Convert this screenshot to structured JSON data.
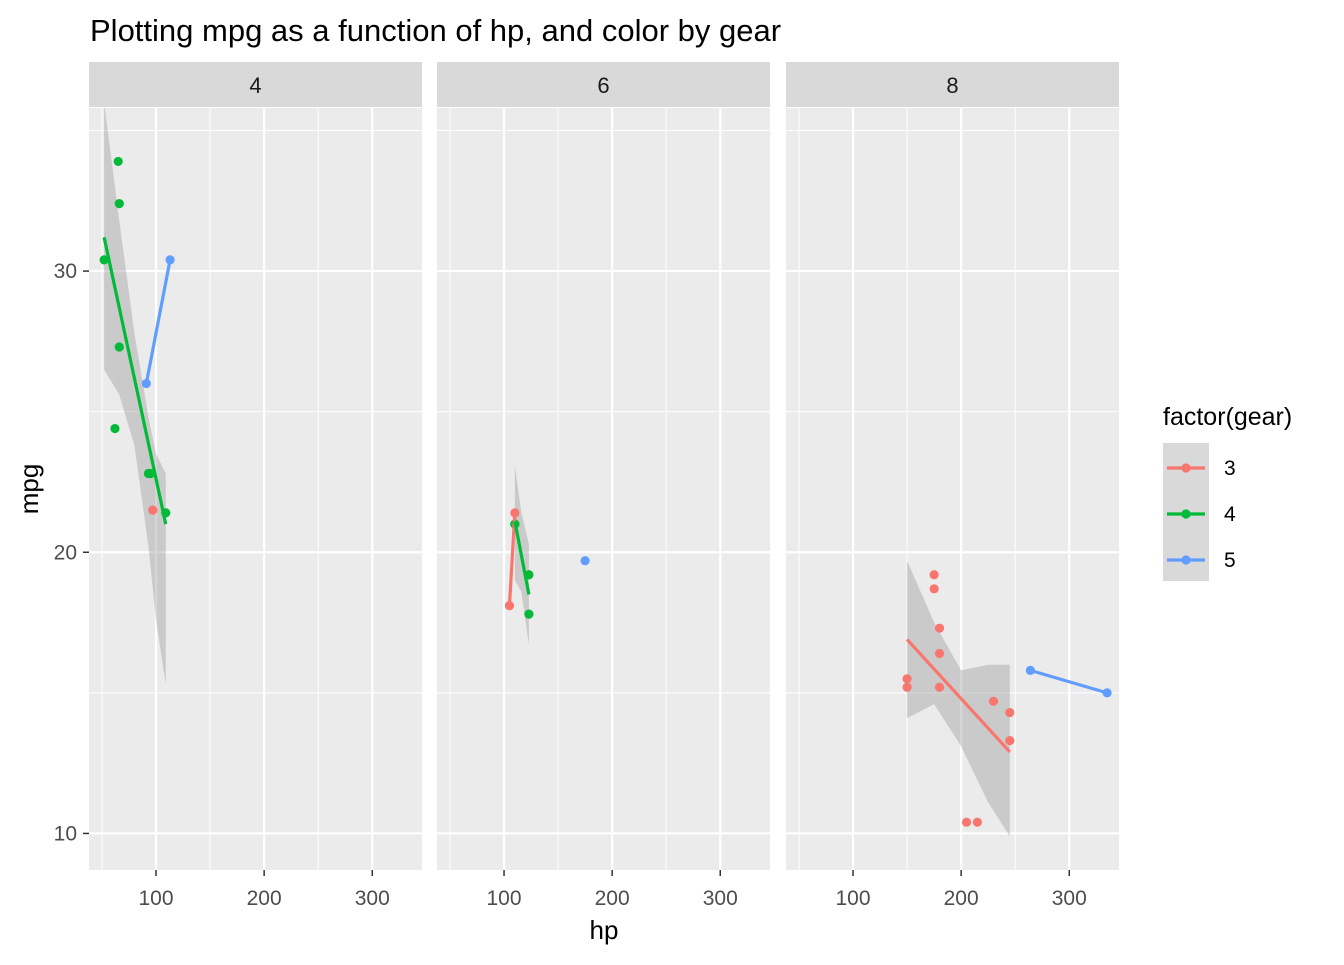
{
  "chart_data": {
    "type": "scatter",
    "title": "Plotting mpg as a function of hp, and color by gear",
    "xlabel": "hp",
    "ylabel": "mpg",
    "xlim": [
      38,
      346
    ],
    "ylim": [
      8.7,
      35.8
    ],
    "x_ticks": [
      100,
      200,
      300
    ],
    "y_ticks": [
      10,
      20,
      30
    ],
    "grid": true,
    "legend": {
      "title": "factor(gear)",
      "position": "right",
      "entries": [
        {
          "label": "3",
          "color": "#F8766D"
        },
        {
          "label": "4",
          "color": "#00BA38"
        },
        {
          "label": "5",
          "color": "#619CFF"
        }
      ]
    },
    "facets": [
      {
        "label": "4",
        "series": [
          {
            "gear": "3",
            "color": "#F8766D",
            "points": [
              [
                97,
                21.5
              ]
            ]
          },
          {
            "gear": "4",
            "color": "#00BA38",
            "points": [
              [
                93,
                22.8
              ],
              [
                62,
                24.4
              ],
              [
                95,
                22.8
              ],
              [
                66,
                32.4
              ],
              [
                52,
                30.4
              ],
              [
                65,
                33.9
              ],
              [
                66,
                27.3
              ],
              [
                109,
                21.4
              ]
            ],
            "fit": {
              "x": [
                52,
                109
              ],
              "y": [
                31.2,
                21.0
              ]
            },
            "band": [
              [
                52,
                36.0,
                26.5
              ],
              [
                66,
                31.8,
                25.6
              ],
              [
                80,
                27.8,
                23.8
              ],
              [
                93,
                24.8,
                20.2
              ],
              [
                100,
                23.5,
                17.6
              ],
              [
                109,
                22.8,
                15.3
              ]
            ]
          },
          {
            "gear": "5",
            "color": "#619CFF",
            "points": [
              [
                91,
                26.0
              ],
              [
                113,
                30.4
              ]
            ],
            "fit": {
              "x": [
                91,
                113
              ],
              "y": [
                26.0,
                30.4
              ]
            }
          }
        ]
      },
      {
        "label": "6",
        "series": [
          {
            "gear": "3",
            "color": "#F8766D",
            "points": [
              [
                110,
                21.4
              ],
              [
                105,
                18.1
              ]
            ],
            "fit": {
              "x": [
                105,
                110
              ],
              "y": [
                18.1,
                21.4
              ]
            }
          },
          {
            "gear": "4",
            "color": "#00BA38",
            "points": [
              [
                110,
                21.0
              ],
              [
                110,
                21.0
              ],
              [
                123,
                19.2
              ],
              [
                123,
                17.8
              ]
            ],
            "fit": {
              "x": [
                110,
                123
              ],
              "y": [
                21.1,
                18.5
              ]
            },
            "band": [
              [
                110,
                23.1,
                19.0
              ],
              [
                116,
                21.4,
                18.6
              ],
              [
                123,
                20.3,
                16.7
              ]
            ]
          },
          {
            "gear": "5",
            "color": "#619CFF",
            "points": [
              [
                175,
                19.7
              ]
            ]
          }
        ]
      },
      {
        "label": "8",
        "series": [
          {
            "gear": "3",
            "color": "#F8766D",
            "points": [
              [
                175,
                18.7
              ],
              [
                245,
                14.3
              ],
              [
                180,
                16.4
              ],
              [
                180,
                17.3
              ],
              [
                180,
                15.2
              ],
              [
                205,
                10.4
              ],
              [
                215,
                10.4
              ],
              [
                230,
                14.7
              ],
              [
                150,
                15.5
              ],
              [
                150,
                15.2
              ],
              [
                245,
                13.3
              ],
              [
                175,
                19.2
              ]
            ],
            "fit": {
              "x": [
                150,
                245
              ],
              "y": [
                16.9,
                12.9
              ]
            },
            "band": [
              [
                150,
                19.7,
                14.1
              ],
              [
                175,
                17.5,
                14.6
              ],
              [
                200,
                15.8,
                13.1
              ],
              [
                225,
                16.0,
                11.1
              ],
              [
                245,
                16.0,
                9.9
              ]
            ]
          },
          {
            "gear": "5",
            "color": "#619CFF",
            "points": [
              [
                264,
                15.8
              ],
              [
                335,
                15.0
              ]
            ],
            "fit": {
              "x": [
                264,
                335
              ],
              "y": [
                15.8,
                15.0
              ]
            }
          }
        ]
      }
    ]
  }
}
